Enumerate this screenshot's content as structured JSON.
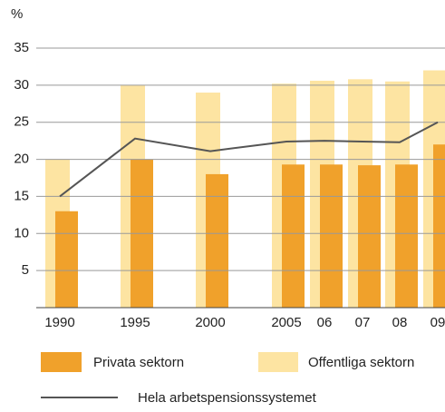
{
  "chart_data": {
    "type": "bar",
    "y_label": "%",
    "categories": [
      "1990",
      "1995",
      "2000",
      "2005",
      "06",
      "07",
      "08",
      "09"
    ],
    "series": [
      {
        "name": "Privata sektorn",
        "color": "#f0a12b",
        "values": [
          13,
          20,
          18,
          19.3,
          19.3,
          19.2,
          19.3,
          22
        ]
      },
      {
        "name": "Offentliga sektorn",
        "color": "#fde4a2",
        "values": [
          20,
          30,
          29,
          30.2,
          30.6,
          30.8,
          30.5,
          32
        ]
      },
      {
        "name": "Hela arbetspensionssystemet",
        "color": "#555555",
        "type": "line",
        "values": [
          15,
          22.8,
          21.1,
          22.4,
          22.5,
          22.4,
          22.3,
          25
        ]
      }
    ],
    "ylim": [
      0,
      35
    ],
    "yticks": [
      5,
      10,
      15,
      20,
      25,
      30,
      35
    ],
    "grid": true
  }
}
